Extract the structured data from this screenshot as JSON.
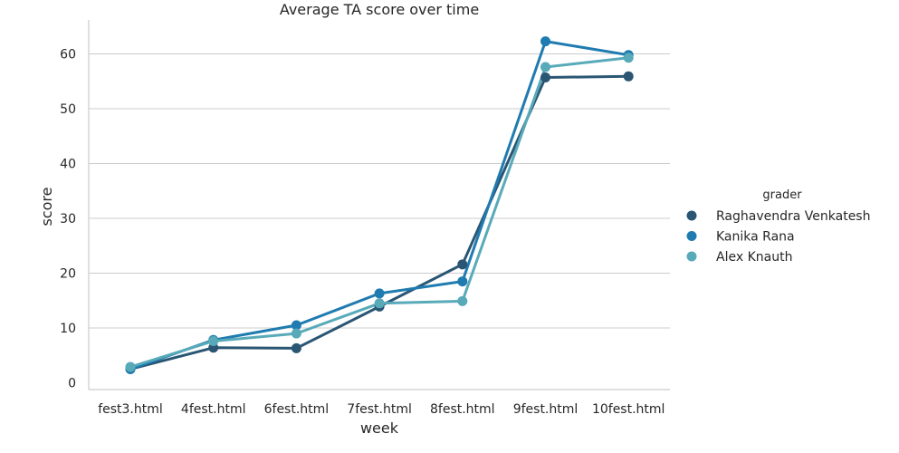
{
  "chart_data": {
    "type": "line",
    "title": "Average TA score over time",
    "xlabel": "week",
    "ylabel": "score",
    "categories": [
      "fest3.html",
      "4fest.html",
      "6fest.html",
      "7fest.html",
      "8fest.html",
      "9fest.html",
      "10fest.html"
    ],
    "ylim": [
      -1,
      66
    ],
    "yticks": [
      0,
      10,
      20,
      30,
      40,
      50,
      60
    ],
    "grid": "horizontal",
    "legend": {
      "title": "grader",
      "placement": "right"
    },
    "series": [
      {
        "name": "Raghavendra Venkatesh",
        "color": "#2a5674",
        "values": [
          2.5,
          6.4,
          6.3,
          13.9,
          21.6,
          55.7,
          55.9
        ]
      },
      {
        "name": "Kanika Rana",
        "color": "#1f7bb0",
        "values": [
          2.5,
          7.8,
          10.5,
          16.3,
          18.5,
          62.3,
          59.8
        ]
      },
      {
        "name": "Alex Knauth",
        "color": "#58aab9",
        "values": [
          2.9,
          7.6,
          9.0,
          14.5,
          14.9,
          57.6,
          59.3
        ]
      }
    ]
  }
}
